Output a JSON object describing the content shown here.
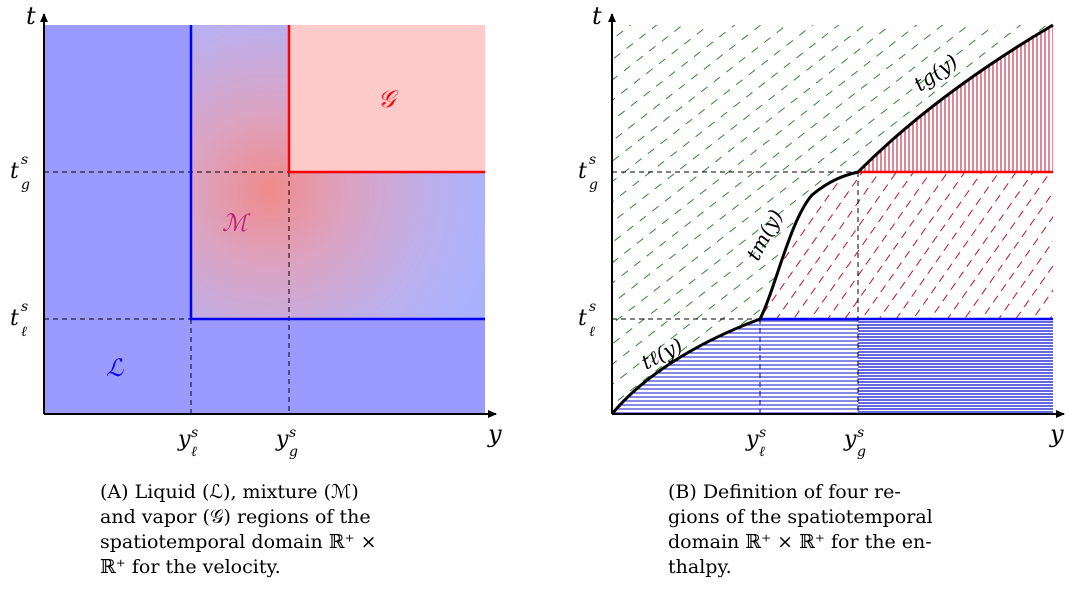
{
  "panel_a": {
    "axis_t": "t",
    "axis_y": "y",
    "tick_tg": "t",
    "tick_tg_sup": "s",
    "tick_tg_sub": "g",
    "tick_tl": "t",
    "tick_tl_sup": "s",
    "tick_tl_sub": "ℓ",
    "tick_yl": "y",
    "tick_yl_sup": "s",
    "tick_yl_sub": "ℓ",
    "tick_yg": "y",
    "tick_yg_sup": "s",
    "tick_yg_sub": "g",
    "region_g": "𝒢",
    "region_m": "ℳ",
    "region_l": "ℒ",
    "colors": {
      "liquid": "#9b9bff",
      "vapor": "#ffcaca",
      "mixture_peak": "#f08b8b",
      "boundary_blue": "#0000ff",
      "boundary_red": "#ff0000"
    }
  },
  "panel_b": {
    "axis_t": "t",
    "axis_y": "y",
    "tick_tg": "t",
    "tick_tg_sup": "s",
    "tick_tg_sub": "g",
    "tick_tl": "t",
    "tick_tl_sup": "s",
    "tick_tl_sub": "ℓ",
    "tick_yl": "y",
    "tick_yl_sup": "s",
    "tick_yl_sub": "ℓ",
    "tick_yg": "y",
    "tick_yg_sup": "s",
    "tick_yg_sub": "g",
    "curve_tl": "tℓ(y)",
    "curve_tm": "tm(y)",
    "curve_tg": "tg(y)",
    "colors": {
      "green_hatch": "#2e8b2e",
      "red_hatch": "#c01030",
      "blue_hatch": "#0000cc"
    }
  },
  "captions": {
    "a_lines": [
      "(A) Liquid (ℒ), mixture (ℳ)",
      "and vapor (𝒢) regions of the",
      "spatiotemporal domain ℝ⁺ ×",
      "ℝ⁺ for the velocity."
    ],
    "b_lines": [
      "(B) Definition of four re-",
      "gions of the spatiotemporal",
      "domain ℝ⁺ × ℝ⁺ for the en-",
      "thalpy."
    ]
  }
}
